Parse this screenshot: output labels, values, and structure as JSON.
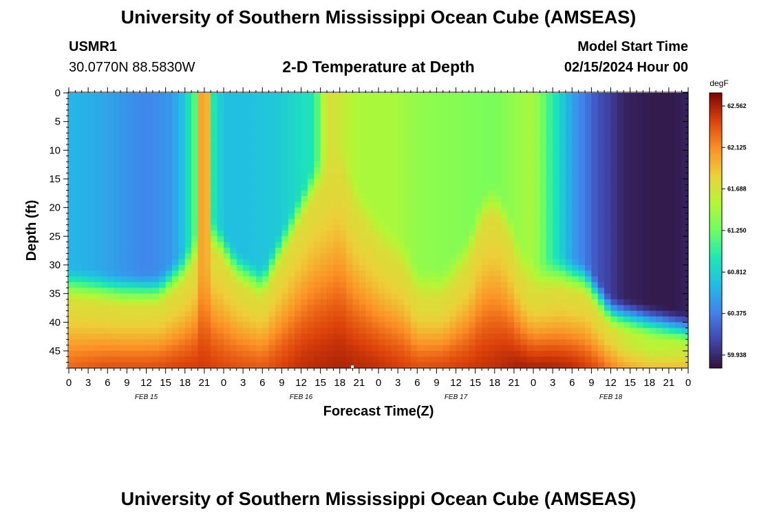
{
  "page": {
    "title": "University of Southern Mississippi Ocean Cube (AMSEAS)",
    "station_id": "USMR1",
    "coordinates": "30.0770N  88.5830W",
    "plot_title": "2-D Temperature at Depth",
    "model_start_label": "Model Start Time",
    "model_start_value": "02/15/2024 Hour 00",
    "footer_title": "University of Southern Mississippi Ocean Cube (AMSEAS)"
  },
  "chart_data": {
    "type": "heatmap",
    "title": "2-D Temperature at Depth",
    "xlabel": "Forecast Time(Z)",
    "ylabel": "Depth (ft)",
    "xlim": [
      0,
      96
    ],
    "ylim": [
      48,
      0
    ],
    "x_tick_labels": [
      "0",
      "3",
      "6",
      "9",
      "12",
      "15",
      "18",
      "21",
      "0",
      "3",
      "6",
      "9",
      "12",
      "15",
      "18",
      "21",
      "0",
      "3",
      "6",
      "9",
      "12",
      "15",
      "18",
      "21",
      "0",
      "3",
      "6",
      "9",
      "12",
      "15",
      "18",
      "21",
      "0"
    ],
    "y_ticks": [
      0,
      5,
      10,
      15,
      20,
      25,
      30,
      35,
      40,
      45
    ],
    "day_labels": [
      {
        "label": "FEB 15",
        "hour": 12
      },
      {
        "label": "FEB 16",
        "hour": 36
      },
      {
        "label": "FEB 17",
        "hour": 60
      },
      {
        "label": "FEB 18",
        "hour": 84
      }
    ],
    "colorbar": {
      "unit": "degF",
      "min": 59.8,
      "max": 62.7,
      "tick_labels": [
        "62.562",
        "62.125",
        "61.688",
        "61.250",
        "60.812",
        "60.375",
        "59.938"
      ],
      "tick_values": [
        62.562,
        62.125,
        61.688,
        61.25,
        60.812,
        60.375,
        59.938
      ]
    },
    "surface_profile": {
      "hours": [
        0,
        4,
        8,
        12,
        16,
        18,
        19.5,
        21,
        22.5,
        24,
        28,
        32,
        38,
        40,
        42,
        45,
        50,
        54,
        60,
        66,
        72,
        74,
        76,
        78,
        80,
        82,
        84,
        86,
        90,
        94,
        96
      ],
      "values": [
        60.65,
        60.6,
        60.5,
        60.4,
        60.5,
        60.75,
        61.15,
        62.45,
        60.95,
        60.7,
        60.7,
        60.75,
        60.95,
        61.75,
        61.65,
        61.5,
        61.5,
        61.4,
        61.35,
        61.3,
        61.5,
        61.15,
        60.85,
        60.55,
        60.35,
        60.15,
        60.05,
        59.9,
        59.85,
        59.85,
        59.9
      ]
    },
    "mixed_layer_bottom": {
      "hours": [
        0,
        8,
        14,
        18,
        21,
        23,
        26,
        30,
        34,
        38,
        42,
        44,
        48,
        52,
        54,
        58,
        62,
        64,
        66,
        68,
        70,
        72,
        76,
        80,
        82,
        84,
        88,
        92,
        96
      ],
      "depths_ft": [
        33,
        34,
        34,
        30,
        24,
        25,
        30,
        33,
        24,
        15,
        10,
        17,
        24,
        28,
        33,
        33,
        27,
        20,
        18,
        22,
        29,
        32,
        31,
        32,
        35,
        38,
        39,
        40,
        41
      ]
    },
    "deep_profile": {
      "hours": [
        0,
        6,
        12,
        18,
        21,
        24,
        30,
        36,
        42,
        48,
        54,
        60,
        66,
        70,
        74,
        78,
        82,
        86,
        90,
        96
      ],
      "values": [
        62.3,
        62.4,
        62.4,
        62.45,
        62.45,
        62.4,
        62.35,
        62.5,
        62.55,
        62.5,
        62.4,
        62.45,
        62.5,
        62.6,
        62.6,
        62.55,
        62.4,
        62.1,
        62.0,
        62.1
      ]
    }
  }
}
